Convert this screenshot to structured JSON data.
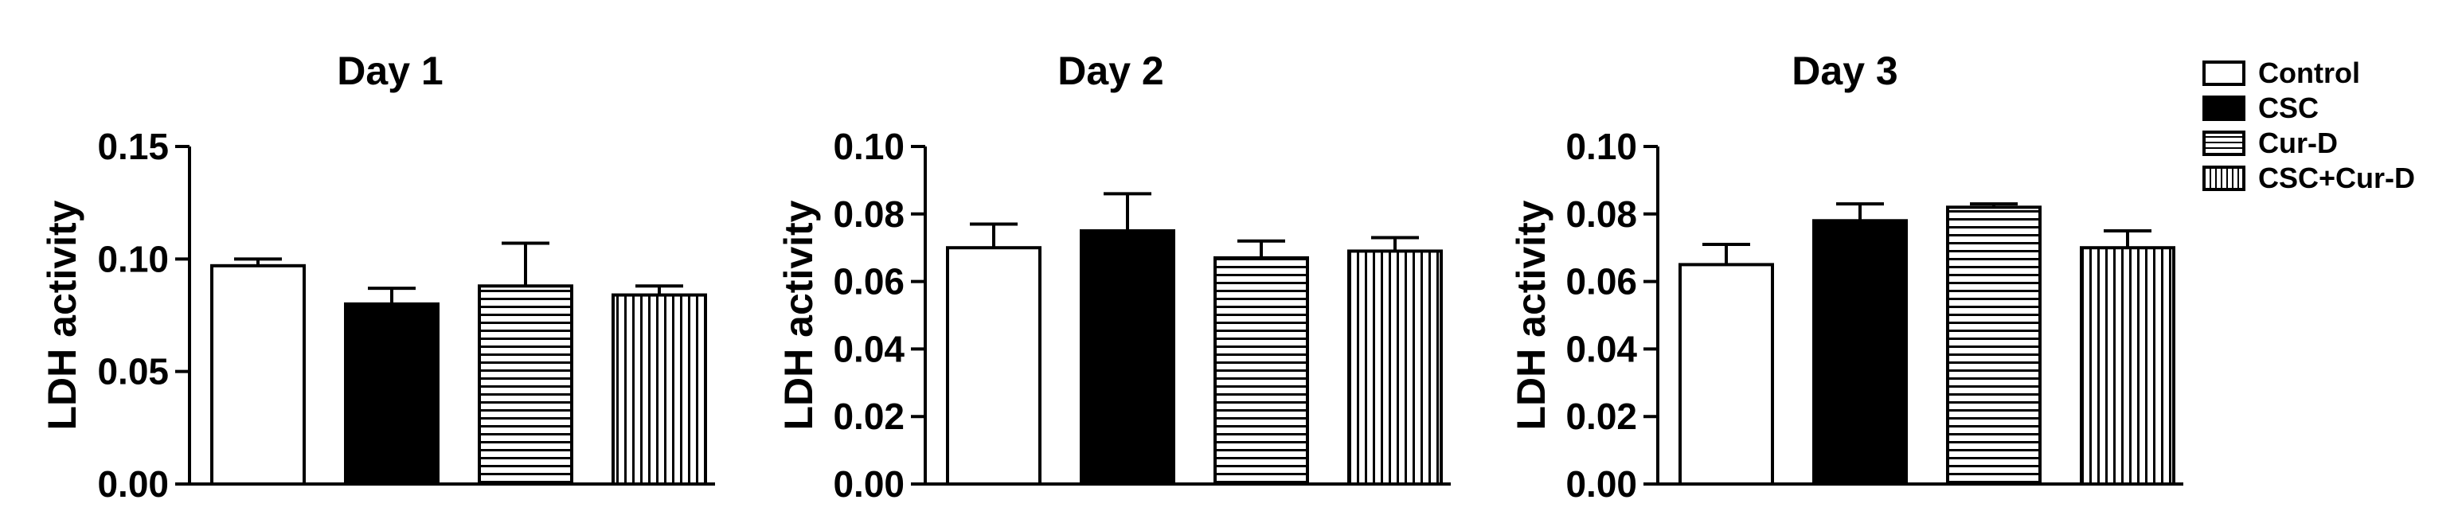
{
  "legend": {
    "placement": "right",
    "entries": [
      {
        "name": "Control",
        "pattern": "white"
      },
      {
        "name": "CSC",
        "pattern": "black"
      },
      {
        "name": "Cur-D",
        "pattern": "horizontal-stripes"
      },
      {
        "name": "CSC+Cur-D",
        "pattern": "vertical-stripes"
      }
    ]
  },
  "chart_data": [
    {
      "type": "bar",
      "title": "Day 1",
      "ylabel": "LDH activity",
      "xlabel": "",
      "ylim": [
        0,
        0.15
      ],
      "yticks": [
        "0.00",
        "0.05",
        "0.10",
        "0.15"
      ],
      "yticks_values": [
        0,
        0.05,
        0.1,
        0.15
      ],
      "categories": [
        "Control",
        "CSC",
        "Cur-D",
        "CSC+Cur-D"
      ],
      "values": [
        0.097,
        0.08,
        0.088,
        0.084
      ],
      "errors": [
        0.003,
        0.007,
        0.019,
        0.004
      ],
      "grid": false
    },
    {
      "type": "bar",
      "title": "Day 2",
      "ylabel": "LDH activity",
      "xlabel": "",
      "ylim": [
        0,
        0.1
      ],
      "yticks": [
        "0.00",
        "0.02",
        "0.04",
        "0.06",
        "0.08",
        "0.10"
      ],
      "yticks_values": [
        0,
        0.02,
        0.04,
        0.06,
        0.08,
        0.1
      ],
      "categories": [
        "Control",
        "CSC",
        "Cur-D",
        "CSC+Cur-D"
      ],
      "values": [
        0.07,
        0.075,
        0.067,
        0.069
      ],
      "errors": [
        0.007,
        0.011,
        0.005,
        0.004
      ],
      "grid": false
    },
    {
      "type": "bar",
      "title": "Day 3",
      "ylabel": "LDH activity",
      "xlabel": "",
      "ylim": [
        0,
        0.1
      ],
      "yticks": [
        "0.00",
        "0.02",
        "0.04",
        "0.06",
        "0.08",
        "0.10"
      ],
      "yticks_values": [
        0,
        0.02,
        0.04,
        0.06,
        0.08,
        0.1
      ],
      "categories": [
        "Control",
        "CSC",
        "Cur-D",
        "CSC+Cur-D"
      ],
      "values": [
        0.065,
        0.078,
        0.082,
        0.07
      ],
      "errors": [
        0.006,
        0.005,
        0.001,
        0.005
      ],
      "grid": false
    }
  ]
}
